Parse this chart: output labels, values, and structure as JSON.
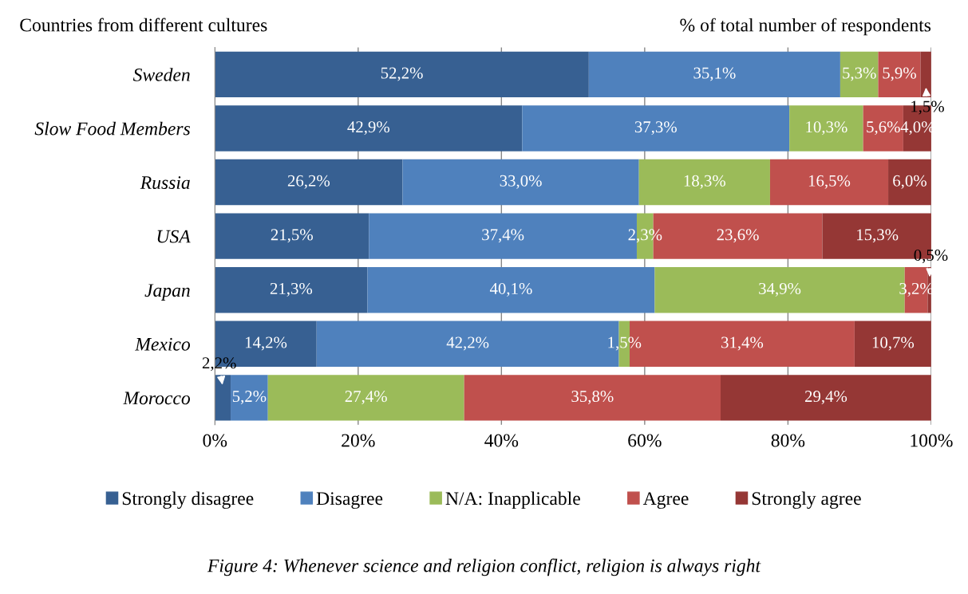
{
  "chart_data": {
    "type": "bar",
    "orientation": "horizontal",
    "stacked": true,
    "ylabel": "Countries from different cultures",
    "xlabel": "% of total number of respondents",
    "categories": [
      "Sweden",
      "Slow Food Members",
      "Russia",
      "USA",
      "Japan",
      "Mexico",
      "Morocco"
    ],
    "series": [
      {
        "name": "Strongly disagree",
        "color": "#376092",
        "values": [
          52.2,
          42.9,
          26.2,
          21.5,
          21.3,
          14.2,
          2.2
        ],
        "value_labels": [
          "52,2%",
          "42,9%",
          "26,2%",
          "21,5%",
          "21,3%",
          "14,2%",
          "2,2%"
        ]
      },
      {
        "name": "Disagree",
        "color": "#4f81bd",
        "values": [
          35.1,
          37.3,
          33.0,
          37.4,
          40.1,
          42.2,
          5.2
        ],
        "value_labels": [
          "35,1%",
          "37,3%",
          "33,0%",
          "37,4%",
          "40,1%",
          "42,2%",
          "5,2%"
        ]
      },
      {
        "name": "N/A: Inapplicable",
        "color": "#9bbb59",
        "values": [
          5.3,
          10.3,
          18.3,
          2.3,
          34.9,
          1.5,
          27.4
        ],
        "value_labels": [
          "5,3%",
          "10,3%",
          "18,3%",
          "2,3%",
          "34,9%",
          "1,5%",
          "27,4%"
        ]
      },
      {
        "name": "Agree",
        "color": "#c0504d",
        "values": [
          5.9,
          5.6,
          16.5,
          23.6,
          3.2,
          31.4,
          35.8
        ],
        "value_labels": [
          "5,9%",
          "5,6%",
          "16,5%",
          "23,6%",
          "3,2%",
          "31,4%",
          "35,8%"
        ]
      },
      {
        "name": "Strongly agree",
        "color": "#953735",
        "values": [
          1.5,
          4.0,
          6.0,
          15.3,
          0.5,
          10.7,
          29.4
        ],
        "value_labels": [
          "1,5%",
          "4,0%",
          "6,0%",
          "15,3%",
          "0,5%",
          "10,7%",
          "29,4%"
        ]
      }
    ],
    "xlim": [
      0,
      100
    ],
    "xticks": [
      {
        "value": 0,
        "label": "0%"
      },
      {
        "value": 20,
        "label": "20%"
      },
      {
        "value": 40,
        "label": "40%"
      },
      {
        "value": 60,
        "label": "60%"
      },
      {
        "value": 80,
        "label": "80%"
      },
      {
        "value": 100,
        "label": "100%"
      }
    ],
    "grid": "x",
    "legend": "bottom",
    "annotations": [
      "Figure 4: Whenever science and religion conflict, religion is always right"
    ]
  }
}
